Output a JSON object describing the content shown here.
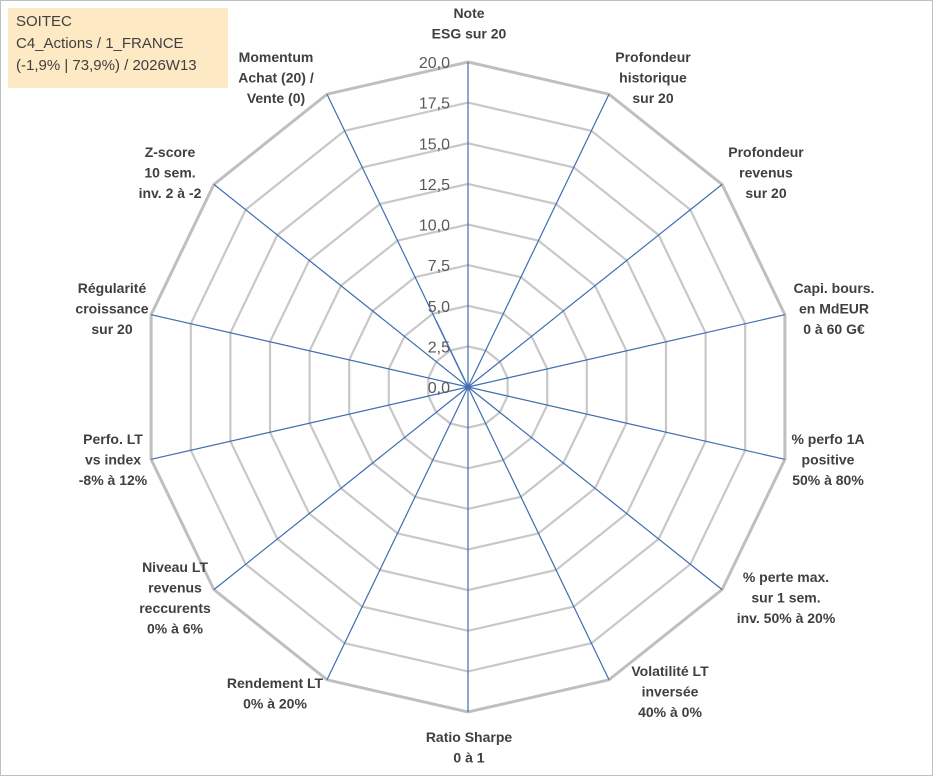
{
  "info": {
    "line1": "SOITEC",
    "line2": "C4_Actions / 1_FRANCE",
    "line3": "(-1,9% | 73,9%) / 2026W13"
  },
  "chart_data": {
    "type": "radar",
    "title": "",
    "r_range": [
      0,
      20
    ],
    "r_ticks": [
      "0,0",
      "2,5",
      "5,0",
      "7,5",
      "10,0",
      "12,5",
      "15,0",
      "17,5",
      "20,0"
    ],
    "tick_values": [
      0,
      2.5,
      5,
      7.5,
      10,
      12.5,
      15,
      17.5,
      20
    ],
    "gridlines": true,
    "axes": [
      {
        "label": [
          "Note",
          "ESG sur 20"
        ]
      },
      {
        "label": [
          "Profondeur",
          "historique",
          "sur 20"
        ]
      },
      {
        "label": [
          "Profondeur",
          "revenus",
          "sur 20"
        ]
      },
      {
        "label": [
          "Capi. bours.",
          "en MdEUR",
          "0 à 60 G€"
        ]
      },
      {
        "label": [
          "% perfo 1A",
          "positive",
          "50% à 80%"
        ]
      },
      {
        "label": [
          "% perte max.",
          "sur 1 sem.",
          "inv. 50% à 20%"
        ]
      },
      {
        "label": [
          "Volatilité LT",
          "inversée",
          "40% à 0%"
        ]
      },
      {
        "label": [
          "Ratio Sharpe",
          "0 à 1"
        ]
      },
      {
        "label": [
          "Rendement LT",
          "0% à 20%"
        ]
      },
      {
        "label": [
          "Niveau LT",
          "revenus",
          "reccurents",
          "0% à 6%"
        ]
      },
      {
        "label": [
          "Perfo. LT",
          "vs index",
          "-8% à 12%"
        ]
      },
      {
        "label": [
          "Régularité",
          "croissance",
          "sur 20"
        ]
      },
      {
        "label": [
          "Z-score",
          "10 sem.",
          "inv. 2 à -2"
        ]
      },
      {
        "label": [
          "Momentum",
          "Achat (20) /",
          "Vente (0)"
        ]
      }
    ],
    "series": [
      {
        "name": "SOITEC",
        "color": "#4a77b4",
        "fill": "#4a77b4",
        "values": [
          0,
          0,
          0,
          0,
          0,
          0,
          0,
          0,
          0,
          0,
          0,
          0,
          0,
          4.5
        ]
      }
    ]
  }
}
